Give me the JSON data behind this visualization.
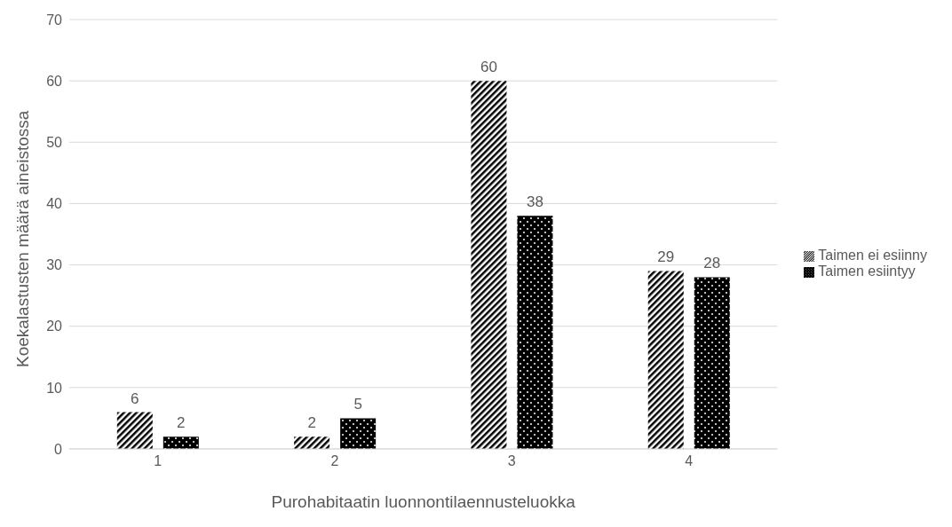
{
  "chart_data": {
    "type": "bar",
    "xlabel": "Purohabitaatin luonnontilaennusteluokka",
    "ylabel": "Koekalastusten määrä aineistossa",
    "categories": [
      "1",
      "2",
      "3",
      "4"
    ],
    "series": [
      {
        "name": "Taimen ei esiinny",
        "color": "#000000",
        "values": [
          6,
          2,
          60,
          29
        ]
      },
      {
        "name": "Taimen esiintyy",
        "color": "#000000",
        "values": [
          2,
          5,
          38,
          28
        ]
      }
    ],
    "ylim": [
      0,
      70
    ],
    "yticks": [
      0,
      10,
      20,
      30,
      40,
      50,
      60,
      70
    ],
    "grid": "y",
    "legend": "right",
    "data_labels": true
  }
}
